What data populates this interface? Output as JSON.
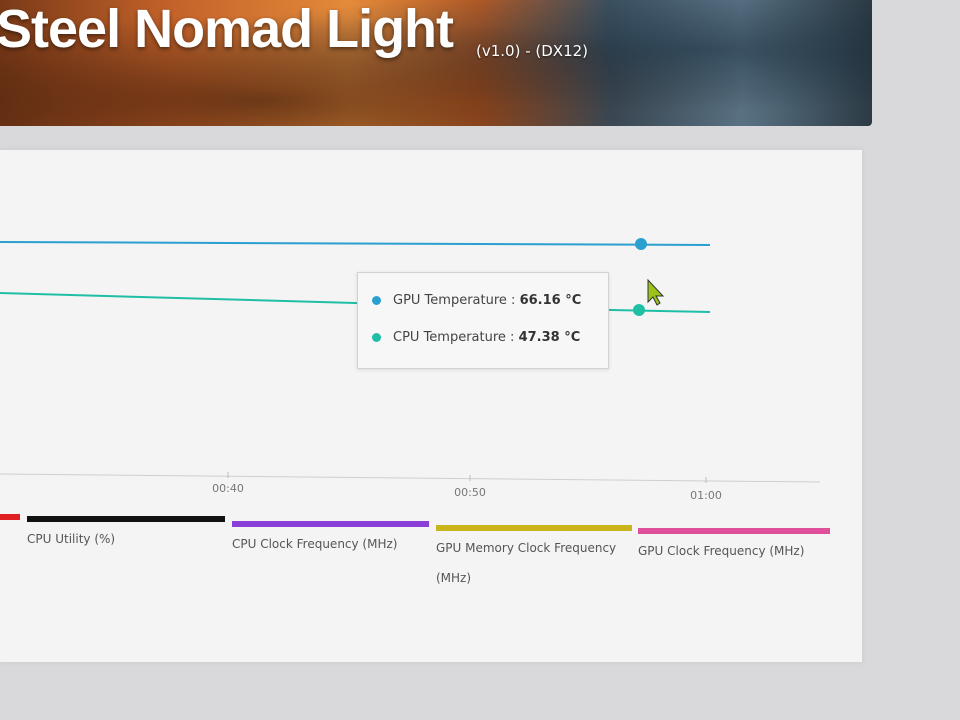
{
  "header": {
    "title": "Steel Nomad Light",
    "subtitle": "(v1.0) - (DX12)"
  },
  "tooltip": {
    "rows": [
      {
        "label": "GPU Temperature : ",
        "value": "66.16 °C",
        "color": "#2a9fd0"
      },
      {
        "label": "CPU Temperature : ",
        "value": "47.38 °C",
        "color": "#1fbfa6"
      }
    ]
  },
  "chart_data": {
    "type": "line",
    "x_tick_labels": [
      "00:40",
      "00:50",
      "01:00"
    ],
    "series": [
      {
        "name": "GPU Temperature",
        "unit": "°C",
        "hover_value": 66.16,
        "color": "#2a9fd0"
      },
      {
        "name": "CPU Temperature",
        "unit": "°C",
        "hover_value": 47.38,
        "color": "#1fbfa6"
      }
    ]
  },
  "legend": [
    {
      "label": "",
      "color": "#e02020"
    },
    {
      "label": "CPU Utility (%)",
      "color": "#111111"
    },
    {
      "label": "CPU Clock Frequency (MHz)",
      "color": "#8a3fd8"
    },
    {
      "label": "GPU Memory Clock Frequency (MHz)",
      "color": "#c9b31a"
    },
    {
      "label": "GPU Clock Frequency (MHz)",
      "color": "#e0509a"
    }
  ]
}
